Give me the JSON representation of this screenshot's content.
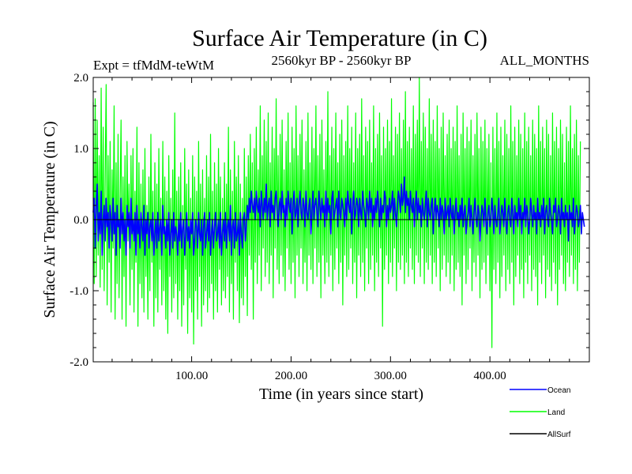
{
  "chart_data": {
    "type": "line",
    "title": "Surface Air Temperature (in C)",
    "subtitle_left": "Expt = tfMdM-teWtM",
    "subtitle_center": "2560kyr BP - 2560kyr BP",
    "subtitle_right": "ALL_MONTHS",
    "xlabel": "Time (in years since start)",
    "ylabel": "Surface Air Temperature (in C)",
    "xlim": [
      1,
      500
    ],
    "ylim": [
      -2.0,
      2.0
    ],
    "x_ticks": [
      100,
      200,
      300,
      400
    ],
    "x_tick_labels": [
      "100.00",
      "200.00",
      "300.00",
      "400.00"
    ],
    "y_ticks": [
      -2.0,
      -1.0,
      0.0,
      1.0,
      2.0
    ],
    "y_tick_labels": [
      "-2.0",
      "-1.0",
      "0.0",
      "1.0",
      "2.0"
    ],
    "legend_position": "bottom-right",
    "series": [
      {
        "name": "Land",
        "color": "#00ff00",
        "x_start": 1,
        "x_step": 1,
        "values": [
          1.65,
          -0.9,
          1.7,
          -0.8,
          1.4,
          -0.5,
          0.9,
          -0.95,
          1.85,
          -0.7,
          1.3,
          -1.0,
          0.6,
          1.9,
          -1.2,
          0.9,
          -0.6,
          1.1,
          -1.3,
          0.7,
          -0.4,
          1.6,
          -1.4,
          0.8,
          -0.9,
          1.2,
          -1.1,
          0.3,
          1.4,
          -1.4,
          0.6,
          -0.8,
          0.9,
          -1.5,
          1.1,
          -0.3,
          0.5,
          -1.2,
          0.9,
          -0.7,
          1.0,
          -1.3,
          0.4,
          -0.6,
          1.3,
          -1.5,
          0.8,
          -0.9,
          0.5,
          -1.1,
          0.7,
          -1.3,
          1.0,
          -0.8,
          0.2,
          -1.4,
          0.6,
          -1.0,
          1.2,
          -0.6,
          0.4,
          -1.5,
          0.8,
          -1.1,
          0.5,
          -1.3,
          1.0,
          -0.7,
          0.3,
          -1.2,
          1.1,
          -1.0,
          0.6,
          -1.4,
          0.4,
          -1.6,
          0.9,
          -0.8,
          0.3,
          -1.3,
          0.7,
          -1.1,
          1.5,
          -0.9,
          0.4,
          -1.4,
          0.6,
          -1.0,
          0.8,
          -1.5,
          0.2,
          -1.2,
          1.0,
          -0.7,
          0.5,
          -1.6,
          0.7,
          -1.1,
          0.3,
          -1.3,
          0.9,
          -1.75,
          0.6,
          -1.0,
          0.4,
          -1.4,
          1.1,
          -0.8,
          0.5,
          -1.5,
          0.7,
          -1.2,
          0.3,
          -1.0,
          0.9,
          -1.3,
          0.6,
          -1.1,
          1.2,
          -0.9,
          0.4,
          -1.4,
          0.8,
          -1.0,
          0.5,
          -1.3,
          1.0,
          -0.7,
          0.6,
          -1.2,
          0.3,
          -1.0,
          0.8,
          -1.1,
          0.5,
          -0.8,
          1.3,
          -1.3,
          0.7,
          -0.9,
          0.4,
          -1.4,
          1.1,
          -0.6,
          0.6,
          -1.0,
          0.9,
          -1.45,
          0.5,
          -1.1,
          0.3,
          -1.2,
          1.0,
          -0.8,
          0.6,
          -1.35,
          0.9,
          -0.5,
          1.2,
          -0.7,
          0.8,
          -1.4,
          1.0,
          -0.6,
          1.3,
          -0.9,
          0.7,
          -0.5,
          1.6,
          -1.0,
          0.9,
          -0.4,
          1.4,
          -0.8,
          1.1,
          -0.6,
          1.5,
          -0.9,
          0.8,
          -0.5,
          1.3,
          -1.1,
          1.0,
          -0.4,
          1.7,
          -0.7,
          0.9,
          -0.9,
          1.2,
          -0.5,
          1.4,
          -0.8,
          0.7,
          -1.0,
          1.1,
          -0.4,
          1.5,
          -0.7,
          0.8,
          -0.9,
          1.3,
          -0.6,
          1.0,
          -1.1,
          1.6,
          -0.5,
          0.9,
          -0.8,
          1.2,
          -0.4,
          1.4,
          -0.9,
          0.7,
          -0.6,
          1.1,
          -1.0,
          1.5,
          -0.5,
          0.8,
          -0.7,
          1.3,
          -0.9,
          1.0,
          -0.4,
          1.6,
          -0.8,
          0.9,
          -0.6,
          1.2,
          -1.1,
          1.4,
          -0.5,
          0.7,
          -0.9,
          1.1,
          -0.6,
          1.8,
          -0.8,
          0.9,
          -0.5,
          1.3,
          -1.0,
          1.0,
          -0.7,
          1.5,
          -0.4,
          0.8,
          -0.9,
          1.2,
          -0.6,
          1.4,
          -1.2,
          0.9,
          -0.5,
          1.1,
          -0.8,
          1.6,
          -0.7,
          1.0,
          -0.4,
          1.3,
          -0.9,
          0.8,
          -0.6,
          1.5,
          -1.1,
          1.0,
          -0.5,
          1.2,
          -0.8,
          1.7,
          -0.6,
          0.9,
          -1.0,
          1.3,
          -0.4,
          1.1,
          -0.9,
          1.4,
          -0.7,
          0.8,
          -0.5,
          1.6,
          -1.0,
          1.0,
          -0.6,
          1.2,
          -0.8,
          1.5,
          -0.4,
          0.9,
          -1.5,
          1.3,
          -0.7,
          1.0,
          -0.5,
          1.4,
          -0.9,
          1.1,
          -0.6,
          1.7,
          -0.8,
          0.9,
          -0.4,
          1.3,
          -1.0,
          1.2,
          -0.6,
          1.5,
          -0.7,
          1.0,
          -0.5,
          1.4,
          -0.9,
          1.8,
          -0.6,
          1.1,
          -0.8,
          1.3,
          -0.4,
          1.0,
          -0.7,
          1.6,
          -0.9,
          1.2,
          -0.5,
          1.4,
          -0.6,
          2.0,
          -0.8,
          1.1,
          -0.4,
          1.5,
          -0.9,
          1.3,
          -0.6,
          1.0,
          -0.7,
          1.7,
          -0.5,
          1.2,
          -0.9,
          1.4,
          -0.6,
          1.1,
          -0.8,
          1.6,
          -0.4,
          1.0,
          -1.0,
          1.3,
          -0.7,
          1.5,
          -0.5,
          0.9,
          -0.8,
          1.2,
          -0.6,
          1.4,
          -0.9,
          1.0,
          -0.5,
          1.3,
          -1.0,
          1.1,
          -0.7,
          1.6,
          -0.6,
          0.9,
          -0.8,
          1.2,
          -1.2,
          1.5,
          -0.5,
          1.0,
          -0.9,
          1.3,
          -0.7,
          1.1,
          -0.4,
          1.4,
          -1.0,
          0.9,
          -0.6,
          1.2,
          -0.8,
          1.5,
          -0.5,
          1.0,
          -1.1,
          1.3,
          -0.7,
          1.1,
          -0.6,
          1.4,
          -0.9,
          1.0,
          -0.5,
          1.2,
          -1.0,
          0.8,
          -1.8,
          1.3,
          -0.7,
          1.0,
          -0.9,
          1.5,
          -0.6,
          1.1,
          -1.1,
          1.3,
          -0.8,
          0.9,
          -0.5,
          1.4,
          -1.0,
          1.2,
          -0.7,
          1.0,
          -0.9,
          1.6,
          -0.6,
          1.1,
          -1.2,
          1.3,
          -0.8,
          0.9,
          -0.5,
          1.4,
          -0.9,
          1.2,
          -0.7,
          1.0,
          -1.1,
          1.5,
          -0.6,
          1.1,
          -0.9,
          1.3,
          -0.5,
          0.9,
          -1.0,
          1.4,
          -0.7,
          1.2,
          -0.8,
          1.0,
          -1.2,
          1.6,
          -0.6,
          1.1,
          -0.9,
          1.3,
          -0.5,
          1.0,
          -1.1,
          1.4,
          -0.7,
          1.2,
          -0.8,
          0.9,
          -1.0,
          1.5,
          -0.6,
          1.1,
          -0.9,
          1.3,
          -1.2,
          1.0,
          -0.7,
          1.4,
          -0.5,
          1.2,
          -0.9,
          0.8,
          -1.0,
          1.3,
          -0.6,
          1.1,
          -0.8,
          1.6,
          -0.5,
          1.0,
          -0.9,
          1.2,
          -0.7,
          1.4,
          -1.0,
          0.9,
          -0.6,
          1.1
        ]
      },
      {
        "name": "Ocean",
        "color": "#0000ff",
        "x_start": 1,
        "x_step": 1,
        "values": [
          0.1,
          0.3,
          -0.4,
          0.2,
          0.5,
          -0.3,
          0.1,
          -0.2,
          0.4,
          -0.5,
          0.0,
          0.2,
          -0.3,
          0.3,
          -0.1,
          0.1,
          -0.4,
          0.2,
          0.0,
          -0.3,
          0.3,
          -0.2,
          0.1,
          -0.5,
          0.2,
          -0.1,
          0.0,
          -0.4,
          0.3,
          -0.2,
          0.1,
          -0.3,
          0.0,
          -0.5,
          0.2,
          -0.1,
          0.1,
          -0.4,
          0.3,
          -0.2,
          0.0,
          -0.3,
          0.1,
          -0.5,
          0.2,
          -0.2,
          0.0,
          -0.4,
          0.1,
          -0.1,
          -0.3,
          0.2,
          -0.5,
          0.0,
          -0.2,
          0.1,
          -0.4,
          -0.1,
          0.0,
          -0.3,
          0.1,
          -0.5,
          -0.2,
          0.0,
          -0.4,
          0.1,
          -0.3,
          -0.1,
          0.0,
          -0.5,
          0.2,
          -0.2,
          -0.1,
          -0.4,
          0.0,
          -0.3,
          0.1,
          -0.5,
          -0.2,
          0.0,
          -0.4,
          0.1,
          -0.3,
          -0.1,
          -0.2,
          -0.5,
          0.0,
          -0.3,
          0.1,
          -0.4,
          -0.1,
          0.0,
          -0.5,
          -0.2,
          0.1,
          -0.3,
          -0.1,
          -0.4,
          0.0,
          -0.2,
          0.1,
          -0.5,
          -0.3,
          0.0,
          -0.1,
          -0.4,
          0.1,
          -0.2,
          -0.3,
          0.0,
          -0.5,
          -0.1,
          0.1,
          -0.4,
          -0.2,
          0.0,
          -0.3,
          0.1,
          -0.5,
          -0.2,
          0.0,
          -0.4,
          -0.1,
          0.1,
          -0.3,
          -0.2,
          0.0,
          -0.4,
          0.1,
          -0.5,
          -0.2,
          0.0,
          -0.3,
          0.1,
          -0.4,
          -0.1,
          0.0,
          -0.3,
          0.2,
          -0.5,
          -0.1,
          0.0,
          -0.4,
          0.1,
          -0.3,
          -0.2,
          0.0,
          -0.5,
          0.1,
          -0.2,
          -0.4,
          0.0,
          0.1,
          -0.3,
          -0.1,
          0.2,
          0.0,
          0.3,
          0.1,
          0.4,
          0.2,
          0.1,
          0.3,
          0.0,
          0.4,
          0.2,
          0.1,
          0.3,
          -0.1,
          0.4,
          0.2,
          0.0,
          0.3,
          0.1,
          0.5,
          0.0,
          0.2,
          0.3,
          -0.1,
          0.4,
          0.1,
          0.2,
          0.0,
          0.3,
          0.4,
          0.1,
          -0.1,
          0.2,
          0.3,
          0.0,
          0.4,
          0.1,
          0.2,
          -0.1,
          0.3,
          0.0,
          0.4,
          0.2,
          0.1,
          0.3,
          -0.2,
          0.2,
          0.4,
          0.0,
          0.1,
          0.3,
          -0.1,
          0.2,
          0.4,
          0.1,
          0.0,
          0.3,
          0.2,
          -0.1,
          0.4,
          0.1,
          0.0,
          0.2,
          0.3,
          -0.2,
          0.1,
          0.4,
          0.0,
          0.2,
          0.3,
          0.1,
          -0.1,
          0.4,
          0.2,
          0.0,
          0.3,
          0.1,
          0.2,
          -0.1,
          0.4,
          0.0,
          0.3,
          0.1,
          0.2,
          -0.2,
          0.3,
          0.4,
          0.0,
          0.1,
          0.2,
          0.3,
          -0.1,
          0.4,
          0.1,
          0.0,
          0.3,
          0.2,
          0.1,
          -0.1,
          0.3,
          0.0,
          0.4,
          0.2,
          0.1,
          0.3,
          -0.2,
          0.2,
          0.4,
          0.0,
          0.1,
          0.3,
          0.2,
          -0.1,
          0.3,
          0.1,
          0.0,
          0.4,
          0.2,
          0.1,
          -0.1,
          0.3,
          0.2,
          0.0,
          0.4,
          0.1,
          0.3,
          -0.1,
          0.2,
          0.0,
          0.3,
          0.1,
          0.4,
          0.2,
          -0.1,
          0.3,
          0.0,
          0.2,
          0.1,
          0.4,
          0.3,
          -0.1,
          0.2,
          0.0,
          0.3,
          0.1,
          0.2,
          0.4,
          0.0,
          0.3,
          0.1,
          -0.1,
          0.2,
          0.4,
          0.3,
          0.1,
          0.5,
          0.2,
          0.3,
          0.6,
          0.1,
          0.4,
          0.2,
          0.3,
          0.0,
          0.4,
          0.2,
          0.1,
          0.3,
          -0.1,
          0.2,
          0.4,
          0.0,
          0.3,
          0.1,
          0.2,
          -0.1,
          0.3,
          0.1,
          0.0,
          0.2,
          0.4,
          -0.1,
          0.3,
          0.1,
          0.0,
          0.2,
          0.3,
          -0.2,
          0.1,
          0.3,
          0.0,
          0.2,
          0.1,
          -0.1,
          0.3,
          0.0,
          0.2,
          0.1,
          -0.2,
          0.3,
          0.0,
          0.1,
          0.2,
          -0.1,
          0.3,
          0.1,
          0.0,
          0.2,
          -0.2,
          0.1,
          0.3,
          0.0,
          0.1,
          -0.1,
          0.2,
          0.0,
          0.3,
          -0.1,
          0.1,
          0.2,
          -0.2,
          0.0,
          0.1,
          0.3,
          -0.1,
          0.2,
          0.0,
          -0.2,
          0.1,
          0.3,
          0.0,
          -0.1,
          0.2,
          0.1,
          -0.3,
          0.0,
          0.2,
          0.1,
          -0.1,
          0.3,
          0.0,
          -0.2,
          0.1,
          0.2,
          -0.1,
          0.0,
          0.3,
          0.1,
          -0.2,
          0.2,
          0.0,
          -0.1,
          0.1,
          0.3,
          -0.2,
          0.0,
          0.2,
          0.1,
          -0.1,
          0.3,
          0.0,
          -0.2,
          0.1,
          0.2,
          0.0,
          -0.1,
          0.3,
          0.1,
          -0.2,
          0.2,
          0.0,
          0.1,
          -0.1,
          0.3,
          0.0,
          0.2,
          -0.2,
          0.1,
          0.0,
          0.3,
          -0.1,
          0.2,
          0.1,
          -0.2,
          0.0,
          0.3,
          0.1,
          -0.1,
          0.2,
          0.0,
          0.1,
          -0.2,
          0.3,
          0.0,
          0.1,
          -0.1,
          0.2,
          0.0,
          0.3,
          -0.2,
          0.1,
          0.2,
          0.0,
          -0.1,
          0.3,
          0.1,
          0.0,
          -0.2,
          0.2,
          0.1,
          0.3,
          -0.1,
          0.0,
          0.2,
          0.1,
          -0.2,
          0.3,
          0.0,
          0.1,
          -0.1,
          0.2,
          0.0,
          0.1,
          -0.3,
          0.2,
          0.0,
          0.1,
          -0.1,
          0.3,
          -0.2,
          0.0,
          0.2,
          0.1,
          -0.1,
          0.0,
          0.2,
          -0.2,
          0.1,
          0.0,
          -0.1
        ]
      },
      {
        "name": "AllSurf",
        "color": "#000000",
        "x_start": 1,
        "x_step": 499,
        "values": [
          0.0,
          0.0
        ]
      }
    ]
  }
}
